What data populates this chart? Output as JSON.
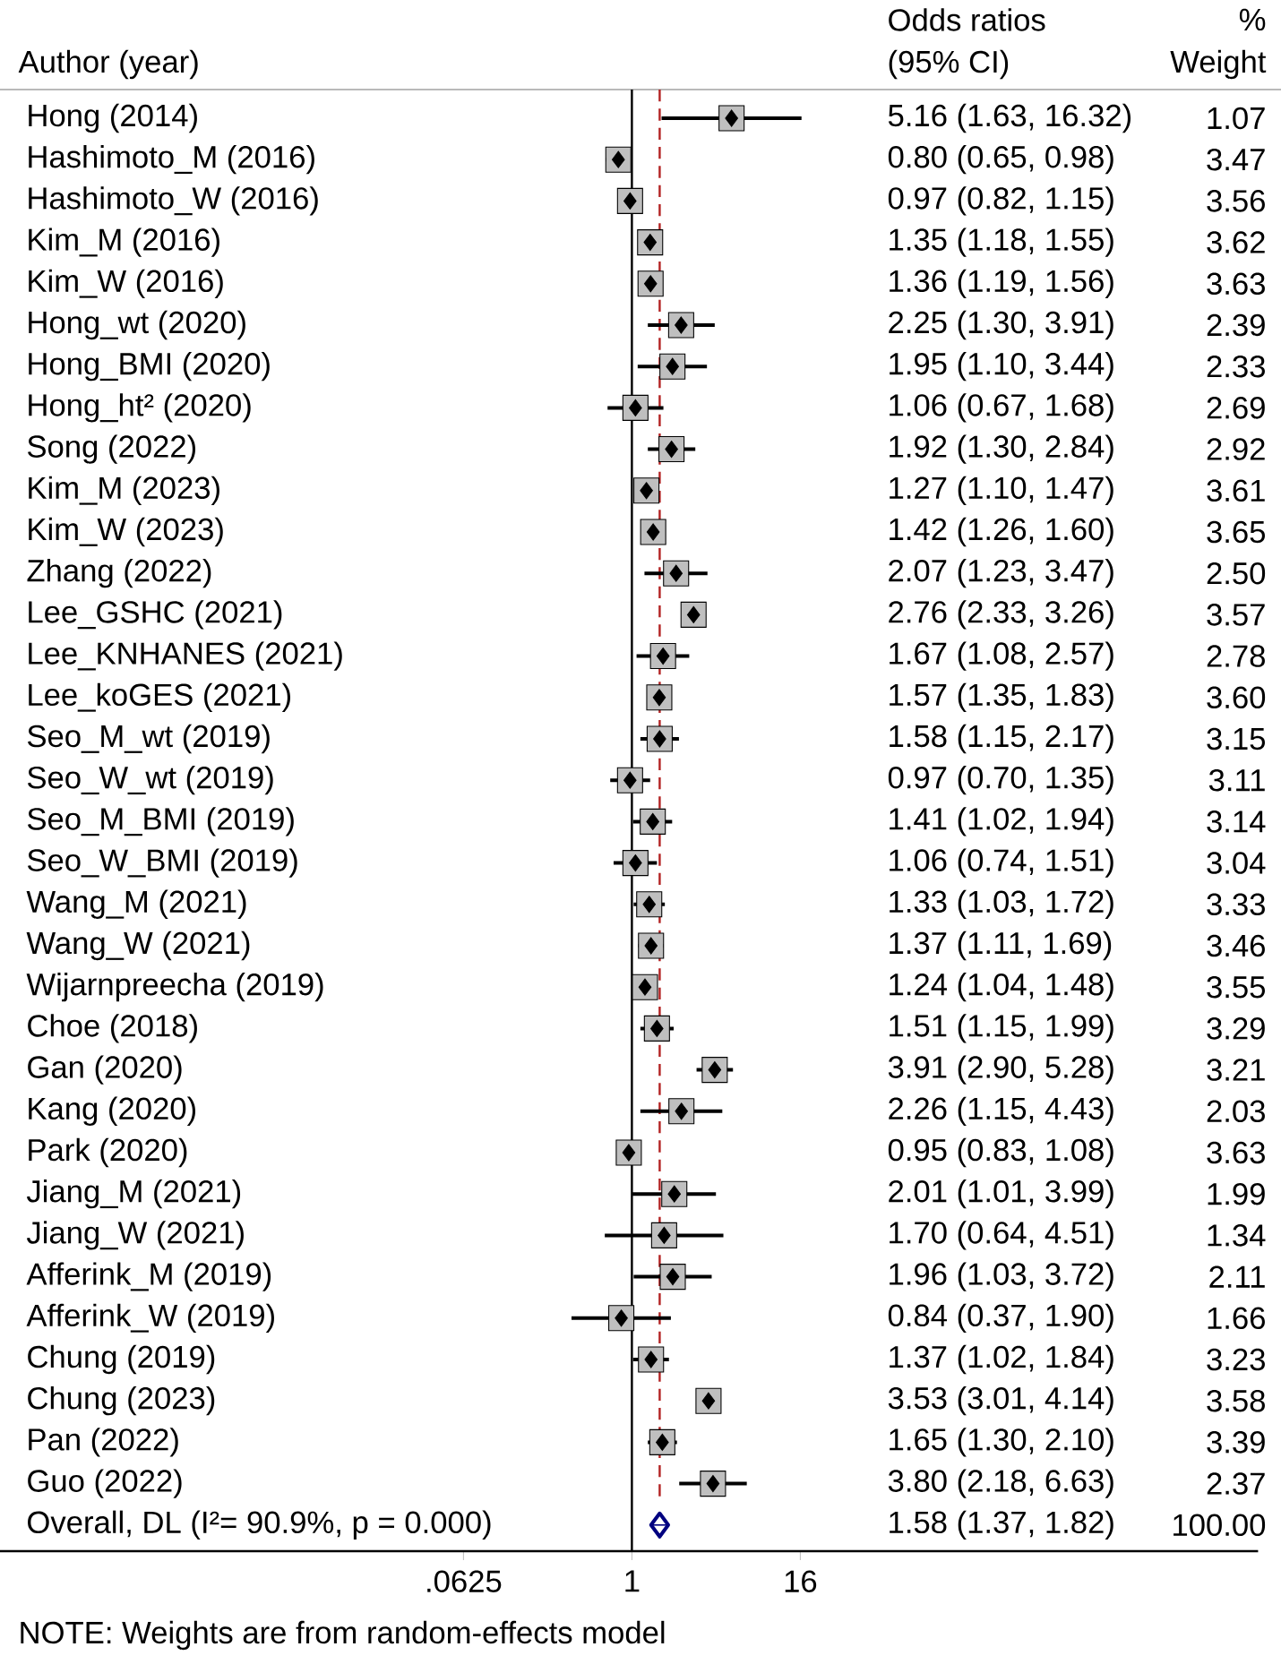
{
  "chart_data": {
    "type": "scatter",
    "orientation": "horizontal",
    "log": "x",
    "ylabel": "Author (year)",
    "categories": [
      "Hong (2014)",
      "Hashimoto_M (2016)",
      "Hashimoto_W (2016)",
      "Kim_M (2016)",
      "Kim_W (2016)",
      "Hong_wt (2020)",
      "Hong_BMI (2020)",
      "Hong_ht² (2020)",
      "Song (2022)",
      "Kim_M (2023)",
      "Kim_W (2023)",
      "Zhang (2022)",
      "Lee_GSHC (2021)",
      "Lee_KNHANES (2021)",
      "Lee_koGES (2021)",
      "Seo_M_wt (2019)",
      "Seo_W_wt (2019)",
      "Seo_M_BMI (2019)",
      "Seo_W_BMI (2019)",
      "Wang_M (2021)",
      "Wang_W (2021)",
      "Wijarnpreecha (2019)",
      "Choe (2018)",
      "Gan (2020)",
      "Kang (2020)",
      "Park (2020)",
      "Jiang_M (2021)",
      "Jiang_W (2021)",
      "Afferink_M (2019)",
      "Afferink_W (2019)",
      "Chung (2019)",
      "Chung (2023)",
      "Pan (2022)",
      "Guo (2022)",
      "Overall, DL (I²= 90.9%, p = 0.000)"
    ],
    "xlim": [
      3e-05,
      30000
    ],
    "xticks": [
      {
        "value": 0.0625,
        "label": ".0625"
      },
      1,
      16
    ],
    "series": [
      {
        "color": "#000000",
        "marker": "square",
        "values": [
          5.16,
          0.8,
          0.97,
          1.35,
          1.36,
          2.25,
          1.95,
          1.06,
          1.92,
          1.27,
          1.42,
          2.07,
          2.76,
          1.67,
          1.57,
          1.58,
          0.97,
          1.41,
          1.06,
          1.33,
          1.37,
          1.24,
          1.51,
          3.91,
          2.26,
          0.95,
          2.01,
          1.7,
          1.96,
          0.84,
          1.37,
          3.53,
          1.65,
          3.8,
          null
        ],
        "errors": [
          [
            1.63,
            16.32
          ],
          [
            0.65,
            0.98
          ],
          [
            0.82,
            1.15
          ],
          [
            1.18,
            1.55
          ],
          [
            1.19,
            1.56
          ],
          [
            1.3,
            3.91
          ],
          [
            1.1,
            3.44
          ],
          [
            0.67,
            1.68
          ],
          [
            1.3,
            2.84
          ],
          [
            1.1,
            1.47
          ],
          [
            1.26,
            1.6
          ],
          [
            1.23,
            3.47
          ],
          [
            2.33,
            3.26
          ],
          [
            1.08,
            2.57
          ],
          [
            1.35,
            1.83
          ],
          [
            1.15,
            2.17
          ],
          [
            0.7,
            1.35
          ],
          [
            1.02,
            1.94
          ],
          [
            0.74,
            1.51
          ],
          [
            1.03,
            1.72
          ],
          [
            1.11,
            1.69
          ],
          [
            1.04,
            1.48
          ],
          [
            1.15,
            1.99
          ],
          [
            2.9,
            5.28
          ],
          [
            1.15,
            4.43
          ],
          [
            0.83,
            1.08
          ],
          [
            1.01,
            3.99
          ],
          [
            0.64,
            4.51
          ],
          [
            1.03,
            3.72
          ],
          [
            0.37,
            1.9
          ],
          [
            1.02,
            1.84
          ],
          [
            3.01,
            4.14
          ],
          [
            1.3,
            2.1
          ],
          [
            2.18,
            6.63
          ],
          null
        ]
      },
      {
        "color": "#000080",
        "marker": "diamond",
        "values": [
          null,
          null,
          null,
          null,
          null,
          null,
          null,
          null,
          null,
          null,
          null,
          null,
          null,
          null,
          null,
          null,
          null,
          null,
          null,
          null,
          null,
          null,
          null,
          null,
          null,
          null,
          null,
          null,
          null,
          null,
          null,
          null,
          null,
          null,
          1.58
        ],
        "errors": [
          null,
          null,
          null,
          null,
          null,
          null,
          null,
          null,
          null,
          null,
          null,
          null,
          null,
          null,
          null,
          null,
          null,
          null,
          null,
          null,
          null,
          null,
          null,
          null,
          null,
          null,
          null,
          null,
          null,
          null,
          null,
          null,
          null,
          null,
          [
            1.37,
            1.82
          ]
        ]
      }
    ],
    "ref_lines": [
      {
        "axis": "x",
        "value": 1,
        "color": "#000000",
        "line_style": "solid"
      },
      {
        "axis": "x",
        "value": 1.58,
        "color": "#b22222",
        "line_style": "dashed"
      }
    ],
    "annotations": [
      "Odds ratios",
      "(95% CI)",
      "%",
      "Weight",
      "NOTE: Weights are from random-effects model",
      "5.16 (1.63, 16.32)",
      "0.80 (0.65, 0.98)",
      "0.97 (0.82, 1.15)",
      "1.35 (1.18, 1.55)",
      "1.36 (1.19, 1.56)",
      "2.25 (1.30, 3.91)",
      "1.95 (1.10, 3.44)",
      "1.06 (0.67, 1.68)",
      "1.92 (1.30, 2.84)",
      "1.27 (1.10, 1.47)",
      "1.42 (1.26, 1.60)",
      "2.07 (1.23, 3.47)",
      "2.76 (2.33, 3.26)",
      "1.67 (1.08, 2.57)",
      "1.57 (1.35, 1.83)",
      "1.58 (1.15, 2.17)",
      "0.97 (0.70, 1.35)",
      "1.41 (1.02, 1.94)",
      "1.06 (0.74, 1.51)",
      "1.33 (1.03, 1.72)",
      "1.37 (1.11, 1.69)",
      "1.24 (1.04, 1.48)",
      "1.51 (1.15, 1.99)",
      "3.91 (2.90, 5.28)",
      "2.26 (1.15, 4.43)",
      "0.95 (0.83, 1.08)",
      "2.01 (1.01, 3.99)",
      "1.70 (0.64, 4.51)",
      "1.96 (1.03, 3.72)",
      "0.84 (0.37, 1.90)",
      "1.37 (1.02, 1.84)",
      "3.53 (3.01, 4.14)",
      "1.65 (1.30, 2.10)",
      "3.80 (2.18, 6.63)",
      "1.58 (1.37, 1.82)",
      "1.07",
      "3.47",
      "3.56",
      "3.62",
      "3.63",
      "2.39",
      "2.33",
      "2.69",
      "2.92",
      "3.61",
      "3.65",
      "2.50",
      "3.57",
      "2.78",
      "3.60",
      "3.15",
      "3.11",
      "3.14",
      "3.04",
      "3.33",
      "3.46",
      "3.55",
      "3.29",
      "3.21",
      "2.03",
      "3.63",
      "1.99",
      "1.34",
      "2.11",
      "1.66",
      "3.23",
      "3.58",
      "3.39",
      "2.37",
      "100.00"
    ]
  }
}
